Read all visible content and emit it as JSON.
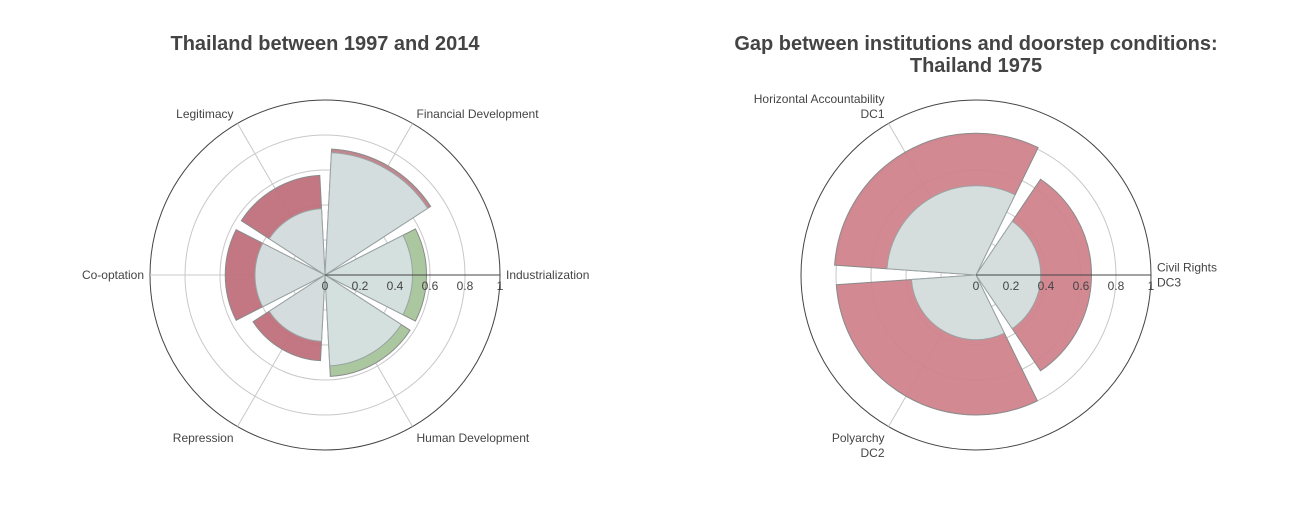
{
  "chart_data": [
    {
      "type": "polar-bar",
      "title": "Thailand between 1997 and 2014",
      "radial_axis": {
        "range": [
          0,
          1
        ],
        "ticks": [
          "0",
          "0.2",
          "0.4",
          "0.6",
          "0.8",
          "1"
        ]
      },
      "grid": true,
      "categories": [
        "Industrialization",
        "Financial Development",
        "Legitimacy",
        "Co-optation",
        "Repression",
        "Human Development"
      ],
      "series": [
        {
          "values": [
            0.58,
            0.72,
            0.57,
            0.57,
            0.49,
            0.58
          ],
          "colors": [
            "#a6c49a",
            "#c07f88",
            "#c0707b",
            "#c0707b",
            "#c0707b",
            "#a6c49a"
          ]
        },
        {
          "values": [
            0.5,
            0.7,
            0.38,
            0.4,
            0.38,
            0.52
          ],
          "color": "#d5e1e1"
        }
      ],
      "colors": {
        "green": "#a6c49a",
        "red": "#c0707b",
        "base": "#d5e1e1"
      }
    },
    {
      "type": "polar-bar",
      "title_lines": [
        "Gap between institutions and doorstep conditions:",
        "Thailand 1975"
      ],
      "radial_axis": {
        "range": [
          0,
          1
        ],
        "ticks": [
          "0",
          "0.2",
          "0.4",
          "0.6",
          "0.8",
          "1"
        ]
      },
      "grid": true,
      "categories": [
        {
          "lines": [
            "Civil Rights",
            "DC3"
          ]
        },
        {
          "lines": [
            "Horizontal Accountability",
            "DC1"
          ]
        },
        {
          "lines": [
            "Polyarchy",
            "DC2"
          ]
        }
      ],
      "series": [
        {
          "values": [
            0.66,
            0.81,
            0.8
          ],
          "color": "#d0838c"
        },
        {
          "values": [
            0.37,
            0.51,
            0.37
          ],
          "color": "#d5e1e1"
        }
      ]
    }
  ]
}
